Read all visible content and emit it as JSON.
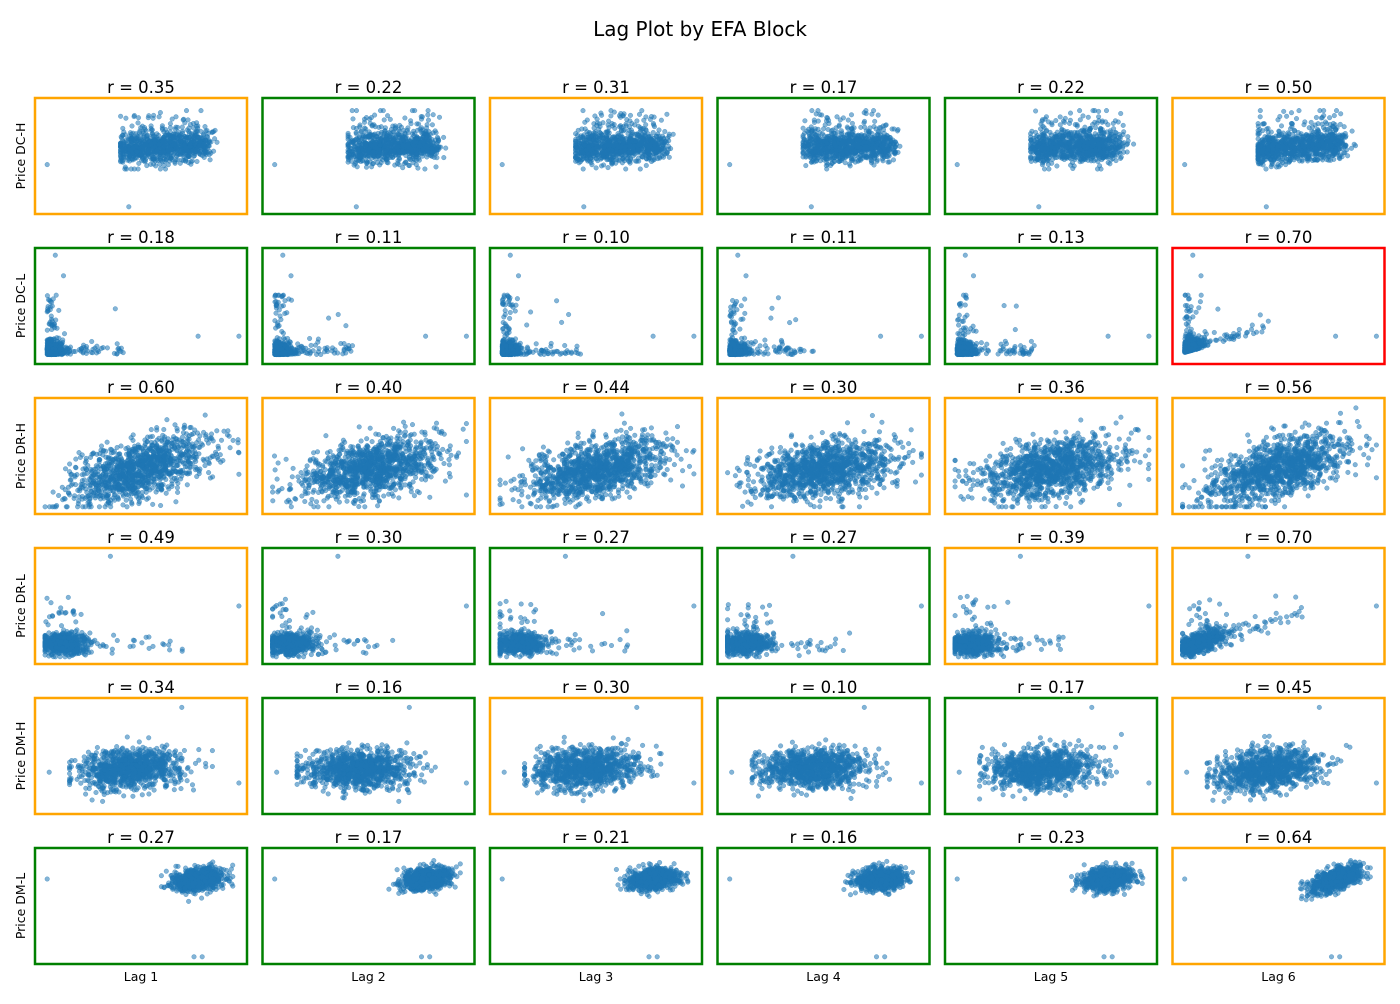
{
  "chart_data": {
    "type": "scatter",
    "title": "Lag Plot by EFA Block",
    "rows": [
      "Price DC-H",
      "Price DC-L",
      "Price DR-H",
      "Price DR-L",
      "Price DM-H",
      "Price DM-L"
    ],
    "columns": [
      "Lag 1",
      "Lag 2",
      "Lag 3",
      "Lag 4",
      "Lag 5",
      "Lag 6"
    ],
    "correlations": [
      [
        "r = 0.35",
        "r = 0.22",
        "r = 0.31",
        "r = 0.17",
        "r = 0.22",
        "r = 0.50"
      ],
      [
        "r = 0.18",
        "r = 0.11",
        "r = 0.10",
        "r = 0.11",
        "r = 0.13",
        "r = 0.70"
      ],
      [
        "r = 0.60",
        "r = 0.40",
        "r = 0.44",
        "r = 0.30",
        "r = 0.36",
        "r = 0.56"
      ],
      [
        "r = 0.49",
        "r = 0.30",
        "r = 0.27",
        "r = 0.27",
        "r = 0.39",
        "r = 0.70"
      ],
      [
        "r = 0.34",
        "r = 0.16",
        "r = 0.30",
        "r = 0.10",
        "r = 0.17",
        "r = 0.45"
      ],
      [
        "r = 0.27",
        "r = 0.17",
        "r = 0.21",
        "r = 0.16",
        "r = 0.23",
        "r = 0.64"
      ]
    ],
    "border_colors": {
      "green": "#008000",
      "orange": "#ffa500",
      "red": "#ff0000"
    },
    "border_assignment": [
      [
        "orange",
        "green",
        "orange",
        "green",
        "green",
        "orange"
      ],
      [
        "green",
        "green",
        "green",
        "green",
        "green",
        "red"
      ],
      [
        "orange",
        "orange",
        "orange",
        "orange",
        "orange",
        "orange"
      ],
      [
        "orange",
        "green",
        "green",
        "green",
        "orange",
        "orange"
      ],
      [
        "orange",
        "green",
        "orange",
        "green",
        "green",
        "orange"
      ],
      [
        "green",
        "green",
        "green",
        "green",
        "green",
        "orange"
      ]
    ],
    "point_color": "#1f77b4",
    "grid": false,
    "axes_ticks": false,
    "legend": "none"
  }
}
